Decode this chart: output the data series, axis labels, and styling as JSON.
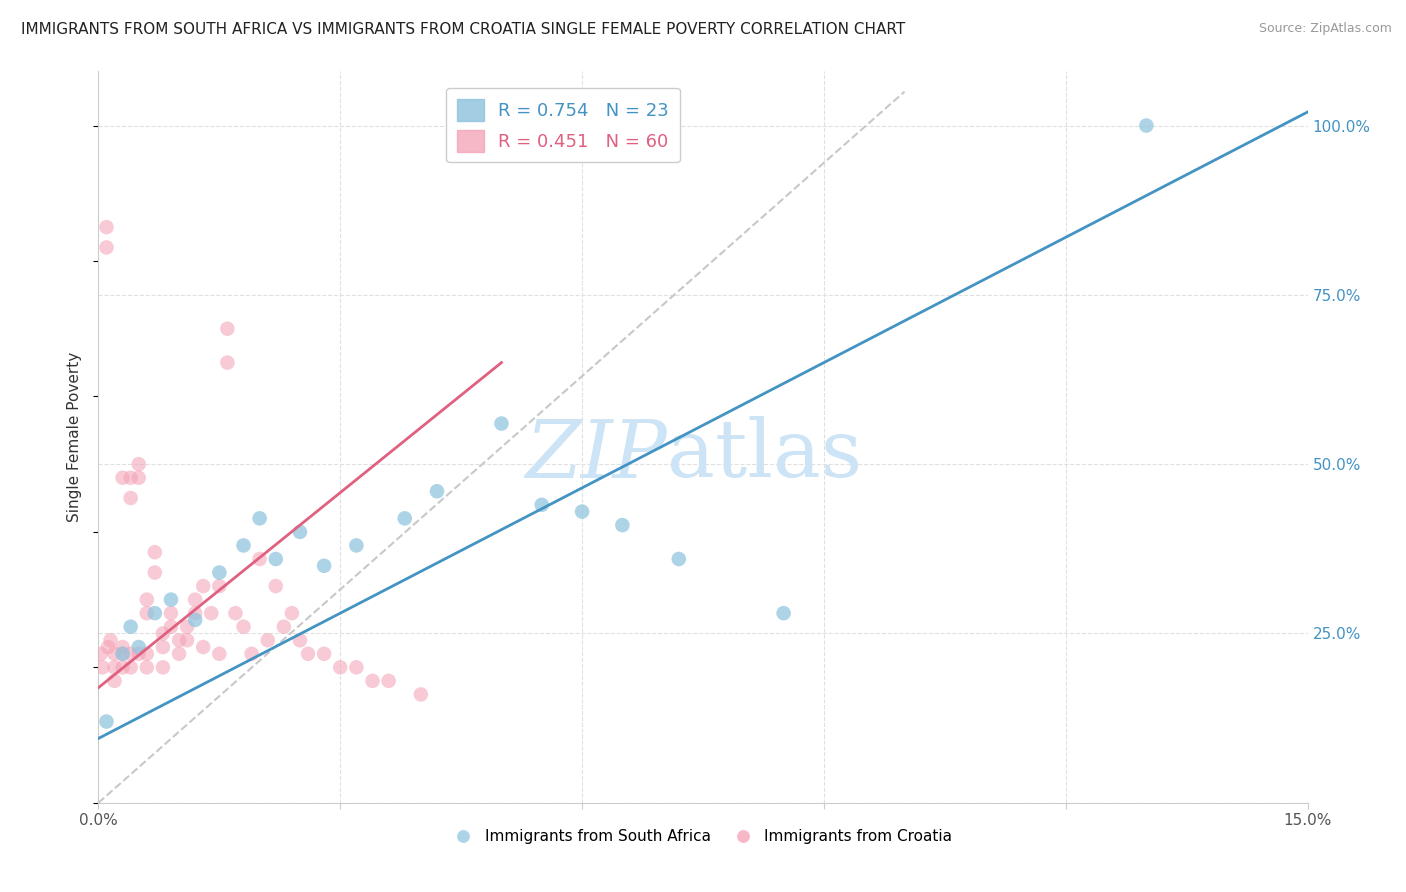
{
  "title": "IMMIGRANTS FROM SOUTH AFRICA VS IMMIGRANTS FROM CROATIA SINGLE FEMALE POVERTY CORRELATION CHART",
  "source": "Source: ZipAtlas.com",
  "ylabel_left": "Single Female Poverty",
  "ylabel_right_ticks": [
    0.0,
    0.25,
    0.5,
    0.75,
    1.0
  ],
  "ylabel_right_labels": [
    "",
    "25.0%",
    "50.0%",
    "75.0%",
    "100.0%"
  ],
  "xlim": [
    0.0,
    0.15
  ],
  "ylim": [
    0.0,
    1.08
  ],
  "xticks": [
    0.0,
    0.03,
    0.06,
    0.09,
    0.12,
    0.15
  ],
  "xticklabels": [
    "0.0%",
    "",
    "",
    "",
    "",
    "15.0%"
  ],
  "legend_entries": [
    {
      "label": "Immigrants from South Africa",
      "color": "#a8c8e8",
      "R": 0.754,
      "N": 23
    },
    {
      "label": "Immigrants from Croatia",
      "color": "#f4a0b5",
      "R": 0.451,
      "N": 60
    }
  ],
  "south_africa_x": [
    0.001,
    0.003,
    0.004,
    0.005,
    0.007,
    0.009,
    0.012,
    0.015,
    0.018,
    0.02,
    0.022,
    0.025,
    0.028,
    0.032,
    0.038,
    0.042,
    0.05,
    0.055,
    0.06,
    0.065,
    0.072,
    0.085,
    0.13
  ],
  "south_africa_y": [
    0.12,
    0.22,
    0.26,
    0.23,
    0.28,
    0.3,
    0.27,
    0.34,
    0.38,
    0.42,
    0.36,
    0.4,
    0.35,
    0.38,
    0.42,
    0.46,
    0.56,
    0.44,
    0.43,
    0.41,
    0.36,
    0.28,
    1.0
  ],
  "croatia_x": [
    0.0003,
    0.0005,
    0.001,
    0.001,
    0.0012,
    0.0015,
    0.002,
    0.002,
    0.002,
    0.003,
    0.003,
    0.003,
    0.003,
    0.004,
    0.004,
    0.004,
    0.004,
    0.005,
    0.005,
    0.005,
    0.006,
    0.006,
    0.006,
    0.006,
    0.007,
    0.007,
    0.008,
    0.008,
    0.008,
    0.009,
    0.009,
    0.01,
    0.01,
    0.011,
    0.011,
    0.012,
    0.012,
    0.013,
    0.013,
    0.014,
    0.015,
    0.015,
    0.016,
    0.016,
    0.017,
    0.018,
    0.019,
    0.02,
    0.021,
    0.022,
    0.023,
    0.024,
    0.025,
    0.026,
    0.028,
    0.03,
    0.032,
    0.034,
    0.036,
    0.04
  ],
  "croatia_y": [
    0.22,
    0.2,
    0.85,
    0.82,
    0.23,
    0.24,
    0.22,
    0.2,
    0.18,
    0.23,
    0.48,
    0.22,
    0.2,
    0.45,
    0.48,
    0.22,
    0.2,
    0.5,
    0.48,
    0.22,
    0.3,
    0.28,
    0.22,
    0.2,
    0.37,
    0.34,
    0.25,
    0.23,
    0.2,
    0.28,
    0.26,
    0.24,
    0.22,
    0.26,
    0.24,
    0.3,
    0.28,
    0.32,
    0.23,
    0.28,
    0.32,
    0.22,
    0.7,
    0.65,
    0.28,
    0.26,
    0.22,
    0.36,
    0.24,
    0.32,
    0.26,
    0.28,
    0.24,
    0.22,
    0.22,
    0.2,
    0.2,
    0.18,
    0.18,
    0.16
  ],
  "blue_color": "#92c5de",
  "pink_color": "#f4a0b5",
  "blue_line_color": "#4393c3",
  "pink_line_color": "#e06080",
  "blue_line_x": [
    0.0,
    0.15
  ],
  "blue_line_y": [
    0.095,
    1.02
  ],
  "pink_line_x": [
    0.0,
    0.05
  ],
  "pink_line_y": [
    0.17,
    0.65
  ],
  "dashed_line_color": "#c8c8c8",
  "dashed_line_x": [
    0.0,
    0.1
  ],
  "dashed_line_y": [
    0.0,
    1.05
  ],
  "watermark_zip": "ZIP",
  "watermark_atlas": "atlas",
  "watermark_color": "#cce4f5",
  "grid_color": "#e0e0e0",
  "background_color": "#ffffff",
  "title_fontsize": 11,
  "axis_label_fontsize": 11,
  "tick_fontsize": 11,
  "right_tick_color": "#4393c3"
}
